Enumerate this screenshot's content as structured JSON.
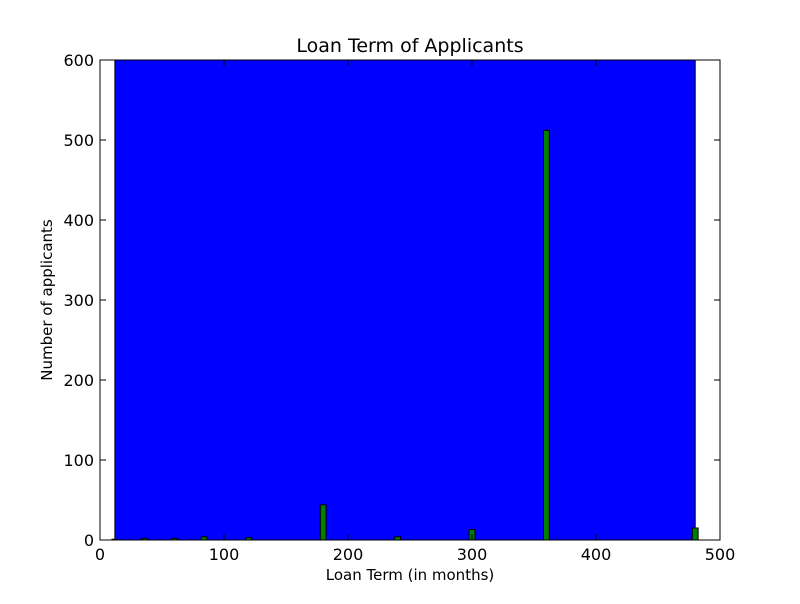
{
  "chart_data": {
    "type": "bar",
    "title": "Loan Term of Applicants",
    "xlabel": "Loan Term (in months)",
    "ylabel": "Number of applicants",
    "xlim": [
      0,
      500
    ],
    "ylim": [
      0,
      600
    ],
    "xticks": [
      0,
      100,
      200,
      300,
      400,
      500
    ],
    "yticks": [
      0,
      100,
      200,
      300,
      400,
      500,
      600
    ],
    "background_range": [
      12,
      480
    ],
    "bar_width": 4.68,
    "x": [
      12,
      36,
      60,
      84,
      120,
      180,
      240,
      300,
      360,
      480
    ],
    "values": [
      1,
      2,
      2,
      4,
      3,
      44,
      4,
      13,
      512,
      15
    ],
    "grid": false,
    "colors": {
      "background": "#0000ff",
      "bar": "#008000",
      "bar_edge": "#000000",
      "axes": "#000000",
      "figure": "#ffffff"
    }
  }
}
